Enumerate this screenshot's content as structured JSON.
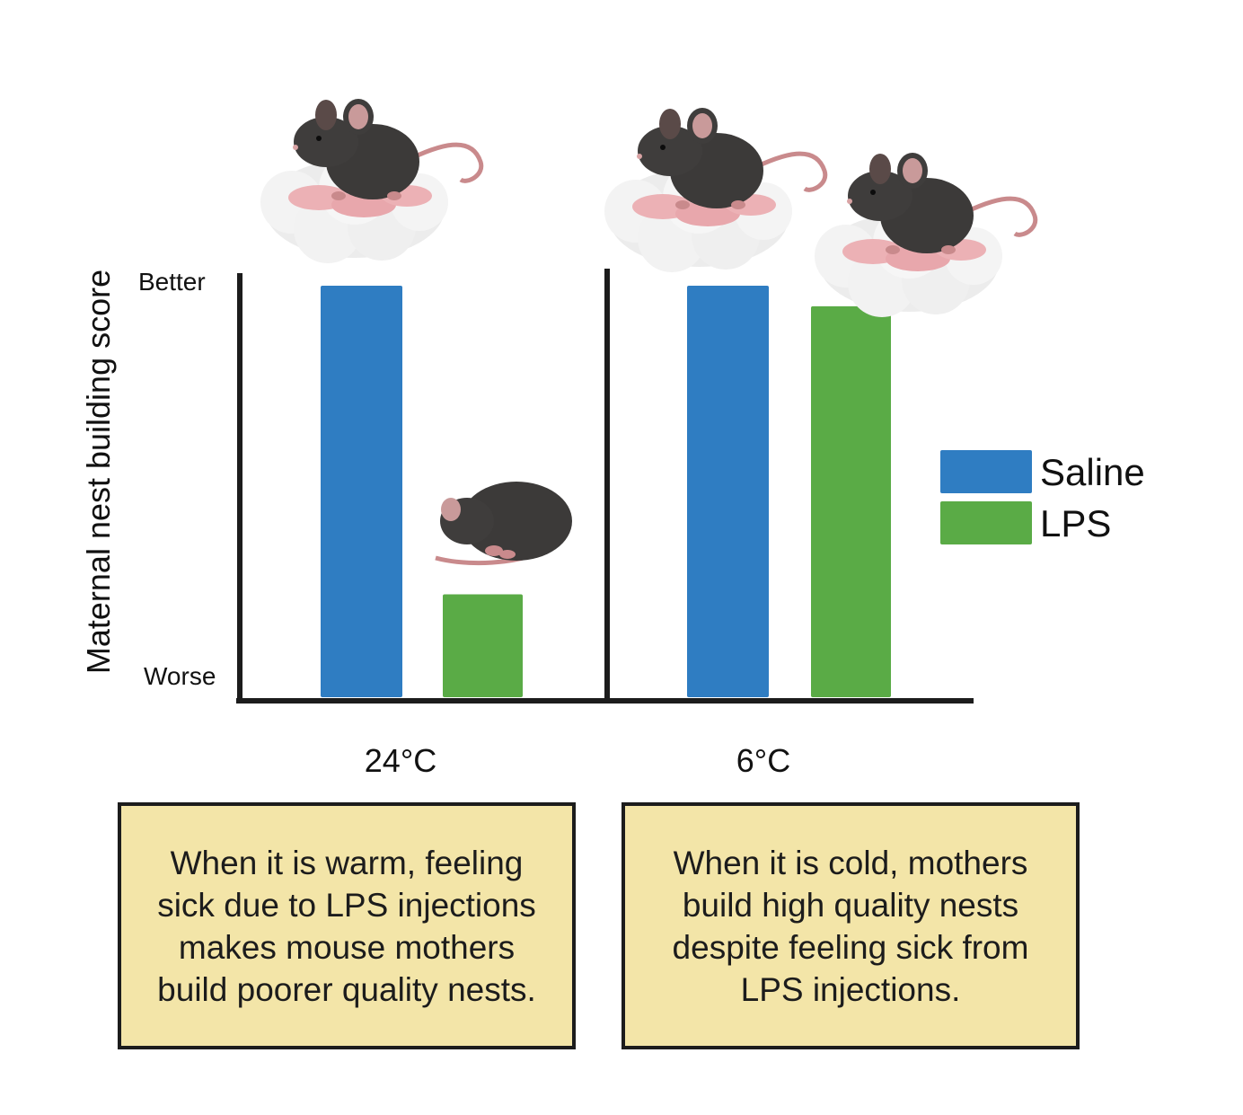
{
  "chart_data": {
    "type": "bar",
    "ylabel": "Maternal nest building score",
    "y_tick_labels": {
      "top": "Better",
      "bottom": "Worse"
    },
    "ylim": [
      0,
      100
    ],
    "categories": [
      "24°C",
      "6°C"
    ],
    "series": [
      {
        "name": "Saline",
        "color": "#2f7dc2",
        "values": [
          100,
          100
        ]
      },
      {
        "name": "LPS",
        "color": "#5aab46",
        "values": [
          25,
          95
        ]
      }
    ],
    "legend_position": "right",
    "grid": false
  },
  "annotations": [
    "When it is warm, feeling sick due to LPS injections makes mouse mothers build poorer quality nests.",
    "When it is cold, mothers build high quality nests despite feeling sick from LPS injections."
  ],
  "icons": [
    "mouse-mother-on-nest-icon",
    "sick-mouse-icon",
    "mouse-mother-on-nest-icon",
    "mouse-mother-on-nest-icon"
  ]
}
